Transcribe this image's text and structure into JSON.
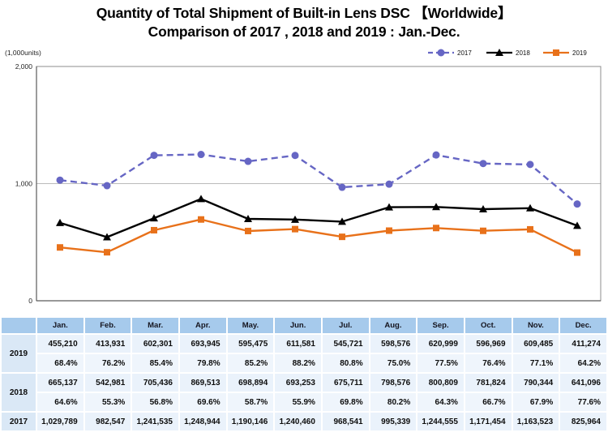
{
  "title": {
    "line1": "Quantity of Total Shipment of Built-in Lens DSC 【Worldwide】",
    "line2": "Comparison of 2017 , 2018 and 2019 : Jan.-Dec."
  },
  "chart_data": {
    "type": "line",
    "unit_label": "(1,000units)",
    "categories": [
      "Jan.",
      "Feb.",
      "Mar.",
      "Apr.",
      "May.",
      "Jun.",
      "Jul.",
      "Aug.",
      "Sep.",
      "Oct.",
      "Nov.",
      "Dec."
    ],
    "y_axis": {
      "min": 0,
      "max": 2000,
      "tick_values": [
        0,
        1000,
        2000
      ],
      "tick_labels": [
        "0",
        "1,000",
        "2,000"
      ],
      "unit_scale": 1000
    },
    "grid": "horizontal",
    "legend_position": "top-right",
    "series": [
      {
        "name": "2017",
        "color": "#6666C4",
        "line_style": "dashed",
        "marker": "circle",
        "values": [
          1029789,
          982547,
          1241535,
          1248944,
          1190146,
          1240460,
          968541,
          995339,
          1244555,
          1171454,
          1163523,
          825964
        ]
      },
      {
        "name": "2018",
        "color": "#000000",
        "line_style": "solid",
        "marker": "triangle",
        "values": [
          665137,
          542981,
          705436,
          869513,
          698894,
          693253,
          675711,
          798576,
          800809,
          781824,
          790344,
          641096
        ]
      },
      {
        "name": "2019",
        "color": "#E8711A",
        "line_style": "solid",
        "marker": "square",
        "values": [
          455210,
          413931,
          602301,
          693945,
          595475,
          611581,
          545721,
          598576,
          620999,
          596969,
          609485,
          411274
        ]
      }
    ]
  },
  "table": {
    "columns": [
      "",
      "Jan.",
      "Feb.",
      "Mar.",
      "Apr.",
      "May.",
      "Jun.",
      "Jul.",
      "Aug.",
      "Sep.",
      "Oct.",
      "Nov.",
      "Dec."
    ],
    "rows": [
      {
        "label": "2019",
        "values": [
          "455,210",
          "413,931",
          "602,301",
          "693,945",
          "595,475",
          "611,581",
          "545,721",
          "598,576",
          "620,999",
          "596,969",
          "609,485",
          "411,274"
        ],
        "percents": [
          "68.4%",
          "76.2%",
          "85.4%",
          "79.8%",
          "85.2%",
          "88.2%",
          "80.8%",
          "75.0%",
          "77.5%",
          "76.4%",
          "77.1%",
          "64.2%"
        ]
      },
      {
        "label": "2018",
        "values": [
          "665,137",
          "542,981",
          "705,436",
          "869,513",
          "698,894",
          "693,253",
          "675,711",
          "798,576",
          "800,809",
          "781,824",
          "790,344",
          "641,096"
        ],
        "percents": [
          "64.6%",
          "55.3%",
          "56.8%",
          "69.6%",
          "58.7%",
          "55.9%",
          "69.8%",
          "80.2%",
          "64.3%",
          "66.7%",
          "67.9%",
          "77.6%"
        ]
      },
      {
        "label": "2017",
        "values": [
          "1,029,789",
          "982,547",
          "1,241,535",
          "1,248,944",
          "1,190,146",
          "1,240,460",
          "968,541",
          "995,339",
          "1,244,555",
          "1,171,454",
          "1,163,523",
          "825,964"
        ]
      }
    ]
  },
  "colors": {
    "series_2017": "#6666C4",
    "series_2018": "#000000",
    "series_2019": "#E8711A",
    "table_header_bg": "#A6CAEC",
    "table_label_bg": "#DAE8F6",
    "table_cell_bg": "#EAF2FB",
    "plot_border": "#8C8C8C",
    "gridline": "#BBBBBB"
  }
}
